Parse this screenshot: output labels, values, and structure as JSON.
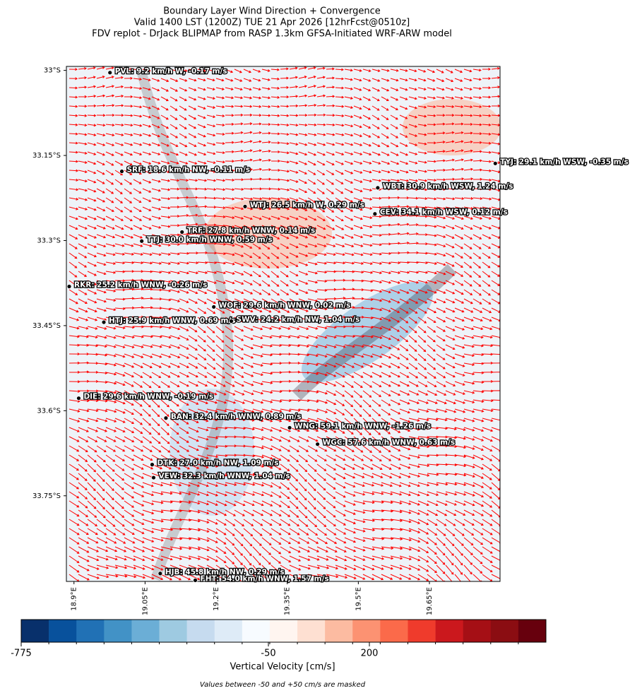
{
  "chart_data": {
    "type": "map",
    "title": "Boundary Layer Wind Direction + Convergence",
    "subtitle": "Valid 1400 LST (1200Z) TUE 21 Apr 2026 [12hrFcst@0510z]",
    "subtitle2": "FDV replot - DrJack BLIPMAP from RASP 1.3km GFSA-Initiated WRF-ARW model",
    "xlim": [
      18.884,
      19.799
    ],
    "ylim": [
      -33.901,
      -32.993
    ],
    "xticks": [
      {
        "value": 18.9,
        "label": "18.9°E"
      },
      {
        "value": 19.05,
        "label": "19.05°E"
      },
      {
        "value": 19.2,
        "label": "19.2°E"
      },
      {
        "value": 19.35,
        "label": "19.35°E"
      },
      {
        "value": 19.5,
        "label": "19.5°E"
      },
      {
        "value": 19.65,
        "label": "19.65°E"
      }
    ],
    "yticks": [
      {
        "value": -33,
        "label": "33°S"
      },
      {
        "value": -33.15,
        "label": "33.15°S"
      },
      {
        "value": -33.3,
        "label": "33.3°S"
      },
      {
        "value": -33.45,
        "label": "33.45°S"
      },
      {
        "value": -33.6,
        "label": "33.6°S"
      },
      {
        "value": -33.75,
        "label": "33.75°S"
      }
    ],
    "vector_color": "#ff0000",
    "stations": [
      {
        "label": "PVL: 9.2 km/h W, -0.17 m/s",
        "lon": 18.976,
        "lat": -33.004
      },
      {
        "label": "SRF: 18.6 km/h NW, -0.11 m/s",
        "lon": 19.001,
        "lat": -33.178
      },
      {
        "label": "WTJ: 26.5 km/h W, 0.29 m/s",
        "lon": 19.261,
        "lat": -33.24
      },
      {
        "label": "TRF: 27.8 km/h WNW, 0.14 m/s",
        "lon": 19.128,
        "lat": -33.285
      },
      {
        "label": "TTJ: 30.0 km/h WNW, 0.59 m/s",
        "lon": 19.043,
        "lat": -33.301
      },
      {
        "label": "TYJ: 29.1 km/h WSW, -0.35 m/s",
        "lon": 19.789,
        "lat": -33.164
      },
      {
        "label": "WBT: 30.9 km/h WSW, 1.24 m/s",
        "lon": 19.541,
        "lat": -33.207
      },
      {
        "label": "CEV: 34.1 km/h WSW, 0.12 m/s",
        "lon": 19.535,
        "lat": -33.253
      },
      {
        "label": "RKR: 25.2 km/h WNW, -0.26 m/s",
        "lon": 18.89,
        "lat": -33.381
      },
      {
        "label": "WOF: 29.6 km/h WNW, 0.02 m/s",
        "lon": 19.195,
        "lat": -33.417
      },
      {
        "label": "HTJ: 25.9 km/h WNW, 0.69 m/s",
        "lon": 18.963,
        "lat": -33.444
      },
      {
        "label": "SWV: 24.2 km/h NW, 1.04 m/s",
        "lon": 19.232,
        "lat": -33.442
      },
      {
        "label": "DIE: 29.6 km/h WNW, -0.19 m/s",
        "lon": 18.91,
        "lat": -33.578
      },
      {
        "label": "BAN: 32.4 km/h WNW, 0.89 m/s",
        "lon": 19.094,
        "lat": -33.613
      },
      {
        "label": "WNG: 59.1 km/h WNW, -1.26 m/s",
        "lon": 19.355,
        "lat": -33.63
      },
      {
        "label": "WGC: 57.6 km/h WNW, 0.63 m/s",
        "lon": 19.414,
        "lat": -33.659
      },
      {
        "label": "DTK: 27.0 km/h NW, 1.09 m/s",
        "lon": 19.065,
        "lat": -33.695
      },
      {
        "label": "VEW: 32.3 km/h WNW, 1.04 m/s",
        "lon": 19.068,
        "lat": -33.718
      },
      {
        "label": "HJB: 45.8 km/h NW, 0.29 m/s",
        "lon": 19.082,
        "lat": -33.887
      },
      {
        "label": "FHT: 54.0 km/h WNW, 1.57 m/s",
        "lon": 19.156,
        "lat": -33.899
      }
    ],
    "colorbar": {
      "label": "Vertical Velocity [cm/s]",
      "ticks": [
        -775,
        -50,
        200
      ],
      "colors": [
        "#08306b",
        "#08519c",
        "#2171b5",
        "#4292c6",
        "#6baed6",
        "#9ecae1",
        "#c6dbef",
        "#deebf7",
        "#f7fbff",
        "#fff5f0",
        "#fee0d2",
        "#fcbba1",
        "#fc9272",
        "#fb6a4a",
        "#ef3b2c",
        "#cb181d",
        "#a50f15",
        "#8b0d12",
        "#67000d"
      ]
    },
    "footnote": "Values between -50 and +50 cm/s are masked"
  }
}
